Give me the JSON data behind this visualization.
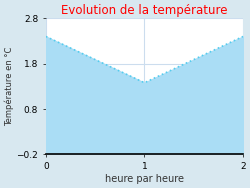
{
  "title": "Evolution de la température",
  "title_color": "#ff0000",
  "xlabel": "heure par heure",
  "ylabel": "Température en °C",
  "x": [
    0,
    1,
    2
  ],
  "y": [
    2.4,
    1.38,
    2.4
  ],
  "ylim": [
    -0.2,
    2.8
  ],
  "xlim": [
    0,
    2
  ],
  "yticks": [
    -0.2,
    0.8,
    1.8,
    2.8
  ],
  "xticks": [
    0,
    1,
    2
  ],
  "line_color": "#55ccee",
  "fill_color": "#aaddf5",
  "figure_bg_color": "#d8e8f0",
  "plot_bg_color": "#ffffff",
  "grid_color": "#ccddee",
  "line_width": 1.2
}
